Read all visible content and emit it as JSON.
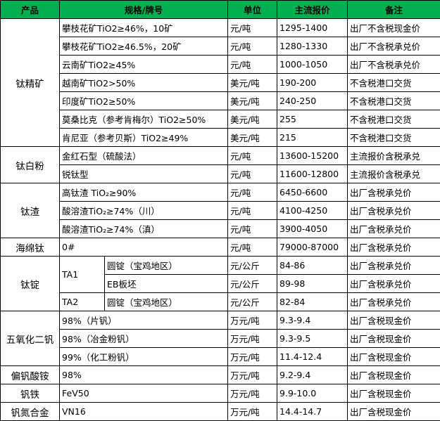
{
  "header": [
    "产品",
    "规格/牌号",
    "单位",
    "主流报价",
    "备注"
  ],
  "groups": [
    {
      "product": "钛精矿",
      "rows": [
        {
          "spec": "攀枝花矿TiO2≥46%，10矿",
          "unit": "元/吨",
          "price": "1295-1400",
          "note": "出厂不含税现金价"
        },
        {
          "spec": "攀枝花矿TiO2≥46.5%，20矿",
          "unit": "元/吨",
          "price": "1280-1330",
          "note": "出厂不含税承兑价"
        },
        {
          "spec": "云南矿TiO2≥45%",
          "unit": "元/吨",
          "price": "1000-1050",
          "note": "出厂不含税承兑价"
        },
        {
          "spec": "越南矿TiO2>50%",
          "unit": "美元/吨",
          "price": "190-200",
          "note": "不含税港口交货"
        },
        {
          "spec": "印度矿TiO2≥50%",
          "unit": "美元/吨",
          "price": "240-250",
          "note": "不含税港口交货"
        },
        {
          "spec": "莫桑比克（参考肯梅尔）TiO2≥50%",
          "unit": "美元/吨",
          "price": "255",
          "note": "不含税港口交货"
        },
        {
          "spec": "肯尼亚（参考贝斯）TiO2≥49%",
          "unit": "美元/吨",
          "price": "215",
          "note": "不含税港口交货"
        }
      ]
    },
    {
      "product": "钛白粉",
      "rows": [
        {
          "spec": "金红石型（硫酸法）",
          "unit": "元/吨",
          "price": "13600-15200",
          "note": "主流报价含税承兑"
        },
        {
          "spec": "锐钛型",
          "unit": "元/吨",
          "price": "11600-12800",
          "note": "主流报价含税承兑"
        }
      ]
    },
    {
      "product": "钛渣",
      "rows": [
        {
          "spec": "高钛渣 TiO₂≥90%",
          "unit": "元/吨",
          "price": "6450-6600",
          "note": "出厂含税承兑价"
        },
        {
          "spec": "酸溶渣TiO₂≥74%（川）",
          "unit": "元/吨",
          "price": "4100-4250",
          "note": "出厂含税承兑价"
        },
        {
          "spec": "酸溶渣TiO₂≥74%（滇）",
          "unit": "元/吨",
          "price": "3900-4050",
          "note": "出厂含税承兑价"
        }
      ]
    },
    {
      "product": "海绵钛",
      "rows": [
        {
          "spec": "0#",
          "unit": "元/吨",
          "price": "79000-87000",
          "note": "出厂含税承兑价"
        }
      ]
    },
    {
      "product": "钛锭",
      "subgroups": [
        {
          "grade": "TA1",
          "rows": [
            {
              "form": "圆锭（宝鸡地区）",
              "unit": "元/公斤",
              "price": "84-86",
              "note": "出厂含税承兑价"
            },
            {
              "form": "EB板坯",
              "unit": "元/公斤",
              "price": "89-98",
              "note": "出厂含税承兑价"
            }
          ]
        },
        {
          "grade": "TA2",
          "rows": [
            {
              "form": "圆锭（宝鸡地区）",
              "unit": "元/公斤",
              "price": "82-84",
              "note": "出厂含税承兑价"
            }
          ]
        }
      ]
    },
    {
      "product": "五氧化二钒",
      "rows": [
        {
          "spec": "98%（片钒）",
          "unit": "万元/吨",
          "price": "9.3-9.4",
          "note": "出厂含税现金价"
        },
        {
          "spec": "98%（冶金粉钒）",
          "unit": "万元/吨",
          "price": "9.3-9.5",
          "note": "出厂含税现金价"
        },
        {
          "spec": "99%（化工粉钒）",
          "unit": "万元/吨",
          "price": "11.4-12.4",
          "note": "出厂含税现金价"
        }
      ]
    },
    {
      "product": "偏钒酸铵",
      "rows": [
        {
          "spec": "98%",
          "unit": "万元/吨",
          "price": "9.2-9.4",
          "note": "出厂含税现金价"
        }
      ]
    },
    {
      "product": "钒铁",
      "rows": [
        {
          "spec": "FeV50",
          "unit": "万元/吨",
          "price": "9.9-10.0",
          "note": "出厂含税现金价"
        }
      ]
    },
    {
      "product": "钒氮合金",
      "rows": [
        {
          "spec": "VN16",
          "unit": "万元/吨",
          "price": "14.4-14.7",
          "note": "出厂含税现金价"
        }
      ]
    }
  ]
}
